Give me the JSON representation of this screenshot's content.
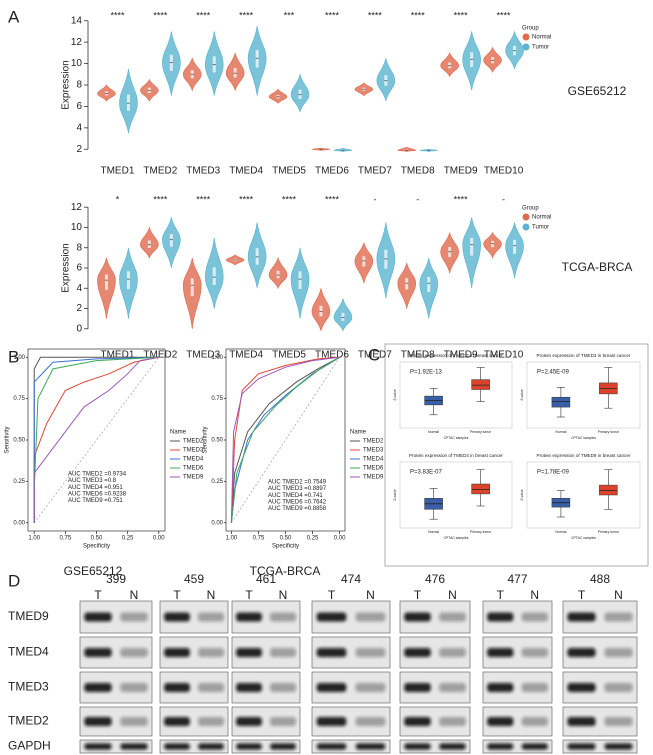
{
  "panel_labels": [
    "A",
    "B",
    "C",
    "D"
  ],
  "chart_data": [
    {
      "type": "violin",
      "side_label": "GSE65212",
      "y_label": "Expression",
      "legend_title": "Group",
      "categories": [
        "TMED1",
        "TMED2",
        "TMED3",
        "TMED4",
        "TMED5",
        "TMED6",
        "TMED7",
        "TMED8",
        "TMED9",
        "TMED10"
      ],
      "significance": [
        "****",
        "****",
        "****",
        "****",
        "***",
        "****",
        "****",
        "****",
        "****",
        "****"
      ],
      "series": [
        {
          "name": "Normal",
          "color": "#e0694e",
          "values": [
            7.2,
            7.5,
            9.0,
            9.1,
            6.9,
            2.0,
            7.6,
            1.9,
            9.8,
            10.3
          ],
          "min": [
            6.5,
            6.5,
            7.5,
            7.5,
            6.3,
            1.9,
            7.0,
            1.8,
            8.8,
            9.2
          ],
          "max": [
            8.0,
            8.5,
            10.5,
            11.0,
            7.6,
            2.1,
            8.2,
            2.2,
            11.0,
            11.5
          ]
        },
        {
          "name": "Tumor",
          "color": "#5ab4cf",
          "values": [
            6.3,
            10.1,
            9.9,
            10.5,
            7.1,
            1.9,
            8.4,
            1.9,
            10.4,
            11.2
          ],
          "min": [
            3.5,
            7.0,
            7.0,
            7.0,
            5.5,
            1.8,
            6.5,
            1.8,
            7.5,
            9.5
          ],
          "max": [
            9.5,
            13.0,
            13.0,
            13.5,
            9.0,
            2.1,
            10.5,
            2.0,
            13.0,
            13.0
          ]
        }
      ],
      "ylim": [
        1,
        15
      ],
      "yticks": [
        2,
        4,
        6,
        8,
        10,
        12,
        14
      ]
    },
    {
      "type": "violin",
      "side_label": "TCGA-BRCA",
      "y_label": "Expression",
      "legend_title": "Group",
      "categories": [
        "TMED1",
        "TMED2",
        "TMED3",
        "TMED4",
        "TMED5",
        "TMED6",
        "TMED7",
        "TMED8",
        "TMED9",
        "TMED10"
      ],
      "significance": [
        "*",
        "****",
        "****",
        "****",
        "****",
        "****",
        "-",
        "-",
        "****",
        "-"
      ],
      "series": [
        {
          "name": "Normal",
          "color": "#e0694e",
          "values": [
            4.8,
            8.3,
            4.3,
            6.8,
            5.3,
            1.7,
            6.7,
            4.5,
            7.6,
            8.4
          ],
          "min": [
            1.0,
            7.0,
            0.0,
            6.3,
            4.0,
            -0.2,
            4.5,
            2.0,
            5.5,
            7.0
          ],
          "max": [
            7.0,
            10.0,
            7.0,
            7.3,
            7.0,
            4.0,
            8.5,
            6.5,
            9.5,
            9.5
          ]
        },
        {
          "name": "Tumor",
          "color": "#5ab4cf",
          "values": [
            4.9,
            8.8,
            5.1,
            7.1,
            4.9,
            1.1,
            6.9,
            4.5,
            8.3,
            8.2
          ],
          "min": [
            1.0,
            6.0,
            2.0,
            4.0,
            1.0,
            -0.2,
            3.0,
            1.0,
            4.0,
            5.0
          ],
          "max": [
            8.0,
            11.0,
            9.0,
            10.5,
            8.0,
            3.0,
            10.5,
            7.0,
            11.0,
            10.5
          ]
        }
      ],
      "ylim": [
        -1.5,
        13.5
      ],
      "yticks": [
        0,
        2,
        4,
        6,
        8,
        10,
        12
      ]
    },
    {
      "type": "line",
      "caption": "GSE65212",
      "x_label": "Specificity",
      "y_label": "Sensitivity",
      "legend_title": "Name",
      "xlim": [
        1.05,
        -0.05
      ],
      "ylim": [
        -0.05,
        1.05
      ],
      "xticks": [
        {
          "value": 1,
          "label": "1.00"
        },
        {
          "value": 0.75,
          "label": "0.75"
        },
        {
          "value": 0.5,
          "label": "0.50"
        },
        {
          "value": 0.25,
          "label": "0.25"
        },
        {
          "value": 0,
          "label": "0.00"
        }
      ],
      "yticks": [
        {
          "value": 0,
          "label": "0.00"
        },
        {
          "value": 0.25,
          "label": "0.25"
        },
        {
          "value": 0.5,
          "label": "0.50"
        },
        {
          "value": 0.75,
          "label": "0.75"
        },
        {
          "value": 1,
          "label": "1.00"
        }
      ],
      "series": [
        {
          "name": "TMED2",
          "color": "#555555",
          "x": [
            1,
            1,
            0.95,
            0
          ],
          "values": [
            0,
            0.93,
            1,
            1
          ]
        },
        {
          "name": "TMED3",
          "color": "#e0463a",
          "x": [
            1,
            1,
            0.9,
            0.75,
            0.6,
            0.4,
            0.2,
            0
          ],
          "values": [
            0,
            0.4,
            0.6,
            0.8,
            0.85,
            0.9,
            0.97,
            1
          ]
        },
        {
          "name": "TMED4",
          "color": "#3b6fd6",
          "x": [
            1,
            1,
            0.85,
            0.5,
            0
          ],
          "values": [
            0,
            0.85,
            0.97,
            0.99,
            1
          ]
        },
        {
          "name": "TMED6",
          "color": "#3aaa5a",
          "x": [
            1,
            1,
            0.97,
            0.85,
            0.5,
            0
          ],
          "values": [
            0,
            0.2,
            0.75,
            0.93,
            0.98,
            1
          ]
        },
        {
          "name": "TMED9",
          "color": "#9b59b6",
          "x": [
            1,
            1,
            0.9,
            0.75,
            0.6,
            0.4,
            0.25,
            0.15,
            0
          ],
          "values": [
            0,
            0.3,
            0.4,
            0.55,
            0.7,
            0.8,
            0.9,
            0.98,
            1
          ]
        }
      ],
      "annotations": [
        "AUC TMED2 =0.9734",
        "AUC TMED3 =0.8",
        "AUC TMED4 =0.951",
        "AUC TMED6 =0.9238",
        "AUC TMED9 =0.751"
      ]
    },
    {
      "type": "line",
      "caption": "TCGA-BRCA",
      "x_label": "Specificity",
      "y_label": "Sensitivity",
      "legend_title": "Name",
      "xlim": [
        1.05,
        -0.05
      ],
      "ylim": [
        -0.05,
        1.05
      ],
      "xticks": [
        {
          "value": 1,
          "label": "1.00"
        },
        {
          "value": 0.75,
          "label": "0.75"
        },
        {
          "value": 0.5,
          "label": "0.50"
        },
        {
          "value": 0.25,
          "label": "0.25"
        },
        {
          "value": 0,
          "label": "0.00"
        }
      ],
      "yticks": [
        {
          "value": 0,
          "label": "0.00"
        },
        {
          "value": 0.25,
          "label": "0.25"
        },
        {
          "value": 0.5,
          "label": "0.50"
        },
        {
          "value": 0.75,
          "label": "0.75"
        },
        {
          "value": 1,
          "label": "1.00"
        }
      ],
      "series": [
        {
          "name": "TMED2",
          "color": "#555555",
          "x": [
            1,
            0.97,
            0.85,
            0.65,
            0.4,
            0.2,
            0
          ],
          "values": [
            0,
            0.3,
            0.55,
            0.72,
            0.85,
            0.93,
            1
          ]
        },
        {
          "name": "TMED3",
          "color": "#e0463a",
          "x": [
            1,
            0.97,
            0.9,
            0.75,
            0.5,
            0.2,
            0
          ],
          "values": [
            0,
            0.5,
            0.8,
            0.9,
            0.95,
            0.99,
            1
          ]
        },
        {
          "name": "TMED4",
          "color": "#3b6fd6",
          "x": [
            1,
            0.97,
            0.85,
            0.7,
            0.5,
            0.25,
            0
          ],
          "values": [
            0,
            0.2,
            0.5,
            0.65,
            0.77,
            0.9,
            1
          ]
        },
        {
          "name": "TMED6",
          "color": "#3aaa5a",
          "x": [
            1,
            0.95,
            0.8,
            0.6,
            0.4,
            0.2,
            0
          ],
          "values": [
            0,
            0.3,
            0.55,
            0.7,
            0.82,
            0.92,
            1
          ]
        },
        {
          "name": "TMED9",
          "color": "#9b59b6",
          "x": [
            1,
            0.98,
            0.9,
            0.75,
            0.5,
            0.25,
            0
          ],
          "values": [
            0,
            0.55,
            0.78,
            0.87,
            0.94,
            0.98,
            1
          ]
        }
      ],
      "annotations": [
        "AUC TMED2 =0.7549",
        "AUC TMED3 =0.8897",
        "AUC TMED4 =0.741",
        "AUC TMED6 =0.7642",
        "AUC TMED9 =0.8858"
      ]
    },
    {
      "type": "box",
      "title": "Protein expression of TMED2 in breast cancer",
      "annotation": "P=1.92E-13",
      "y_label": "Z-value",
      "x_label": "CPTAC samples",
      "categories": [
        "Normal",
        "Primary tumor"
      ],
      "colors": [
        "#3a5fa6",
        "#d9442a"
      ],
      "ylim": [
        -3,
        3
      ],
      "low": [
        -1.8,
        -0.6
      ],
      "q1": [
        -0.9,
        0.5
      ],
      "median": [
        -0.5,
        0.9
      ],
      "q3": [
        -0.1,
        1.4
      ],
      "high": [
        0.6,
        2.5
      ]
    },
    {
      "type": "box",
      "title": "Protein expression of TMED3 in breast cancer",
      "annotation": "P=2.45E-09",
      "y_label": "Z-value",
      "x_label": "CPTAC samples",
      "categories": [
        "Normal",
        "Primary tumor"
      ],
      "colors": [
        "#3a5fa6",
        "#d9442a"
      ],
      "ylim": [
        -3,
        3
      ],
      "low": [
        -2.0,
        -1.2
      ],
      "q1": [
        -1.1,
        0.1
      ],
      "median": [
        -0.6,
        0.6
      ],
      "q3": [
        -0.2,
        1.1
      ],
      "high": [
        0.7,
        2.5
      ]
    },
    {
      "type": "box",
      "title": "Protein expression of TMED4 in breast cancer",
      "annotation": "P=3.83E-07",
      "y_label": "Z-value",
      "x_label": "CPTAC samples",
      "categories": [
        "Normal",
        "Primary tumor"
      ],
      "colors": [
        "#3a5fa6",
        "#d9442a"
      ],
      "ylim": [
        -3,
        3
      ],
      "low": [
        -2.2,
        -1.0
      ],
      "q1": [
        -1.3,
        0.1
      ],
      "median": [
        -0.8,
        0.5
      ],
      "q3": [
        -0.3,
        1.0
      ],
      "high": [
        0.6,
        2.3
      ]
    },
    {
      "type": "box",
      "title": "Protein expression of TMED9 in breast cancer",
      "annotation": "P=1.78E-09",
      "y_label": "Z-value",
      "x_label": "CPTAC samples",
      "categories": [
        "Normal",
        "Primary tumor"
      ],
      "colors": [
        "#3a5fa6",
        "#d9442a"
      ],
      "ylim": [
        -3,
        3
      ],
      "low": [
        -2.0,
        -1.3
      ],
      "q1": [
        -1.1,
        0.0
      ],
      "median": [
        -0.7,
        0.4
      ],
      "q3": [
        -0.3,
        0.9
      ],
      "high": [
        0.4,
        2.3
      ]
    }
  ],
  "blot": {
    "samples": [
      "399",
      "459",
      "461",
      "474",
      "476",
      "477",
      "488"
    ],
    "lanes": [
      "T",
      "N"
    ],
    "proteins": [
      "TMED9",
      "TMED4",
      "TMED3",
      "TMED2",
      "GAPDH"
    ]
  }
}
